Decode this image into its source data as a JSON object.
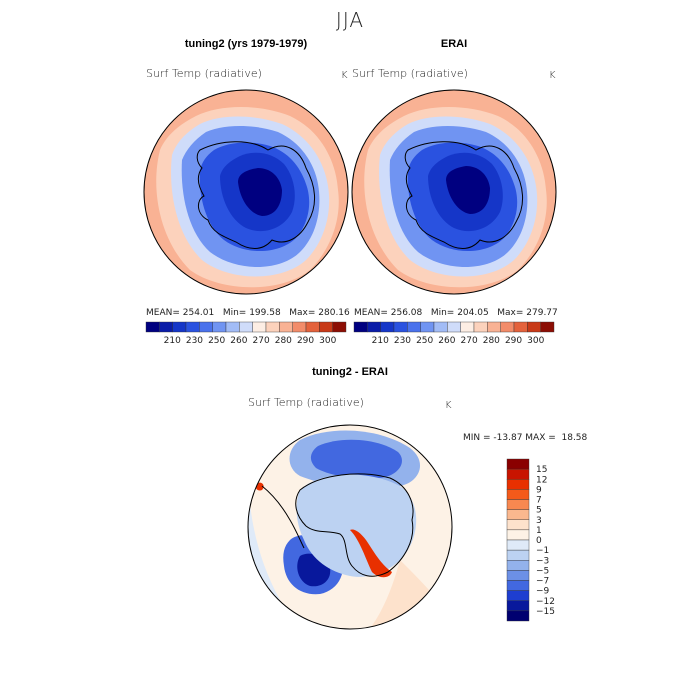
{
  "figure": {
    "title": "JJA"
  },
  "panels": [
    {
      "id": "model",
      "title": "tuning2 (yrs 1979-1979)",
      "variable": "Surf Temp (radiative)",
      "units": "K",
      "stats": "MEAN= 254.01   Min= 199.58   Max= 280.16"
    },
    {
      "id": "obs",
      "title": "ERAI",
      "variable": "Surf Temp (radiative)",
      "units": "K",
      "stats": "MEAN= 256.08   Min= 204.05   Max= 279.77"
    },
    {
      "id": "diff",
      "title": "tuning2 - ERAI",
      "variable": "Surf Temp (radiative)",
      "units": "K",
      "stats": "MIN = -13.87 MAX =  18.58"
    }
  ],
  "colorbars": {
    "abs": {
      "colors": [
        "#000080",
        "#0a1ca8",
        "#1536c8",
        "#2a52e0",
        "#4a72ec",
        "#7094f2",
        "#a2bcf6",
        "#cfdcfa",
        "#fdeee4",
        "#fcd2bc",
        "#f9b294",
        "#f28c6a",
        "#e4623c",
        "#c83a18",
        "#8c0e04"
      ],
      "labels": [
        "210",
        "230",
        "250",
        "260",
        "270",
        "280",
        "290",
        "300"
      ]
    },
    "diff": {
      "colors": [
        "#8a0000",
        "#c81400",
        "#e83000",
        "#f45a1a",
        "#f88850",
        "#fbb88e",
        "#fde2cc",
        "#fdf2e6",
        "#dfeaf8",
        "#bcd2f2",
        "#93b2ec",
        "#6c90e6",
        "#4268e0",
        "#1e3ed0",
        "#08189c",
        "#000070"
      ],
      "labels": [
        "15",
        "12",
        "9",
        "7",
        "5",
        "3",
        "1",
        "0",
        "−1",
        "−3",
        "−5",
        "−7",
        "−9",
        "−12",
        "−15"
      ]
    }
  },
  "chart_data": [
    {
      "type": "heatmap",
      "title": "tuning2 (yrs 1979-1979)",
      "variable": "Surf Temp (radiative)",
      "units": "K",
      "projection": "south-polar-stereographic",
      "mean": 254.01,
      "min": 199.58,
      "max": 280.16,
      "contour_levels": [
        210,
        230,
        250,
        260,
        270,
        280,
        290,
        300
      ]
    },
    {
      "type": "heatmap",
      "title": "ERAI",
      "variable": "Surf Temp (radiative)",
      "units": "K",
      "projection": "south-polar-stereographic",
      "mean": 256.08,
      "min": 204.05,
      "max": 279.77,
      "contour_levels": [
        210,
        230,
        250,
        260,
        270,
        280,
        290,
        300
      ]
    },
    {
      "type": "heatmap",
      "title": "tuning2 - ERAI",
      "variable": "Surf Temp (radiative)",
      "units": "K",
      "projection": "south-polar-stereographic",
      "min": -13.87,
      "max": 18.58,
      "contour_levels": [
        -15,
        -12,
        -9,
        -7,
        -5,
        -3,
        -1,
        0,
        1,
        3,
        5,
        7,
        9,
        12,
        15
      ]
    }
  ]
}
